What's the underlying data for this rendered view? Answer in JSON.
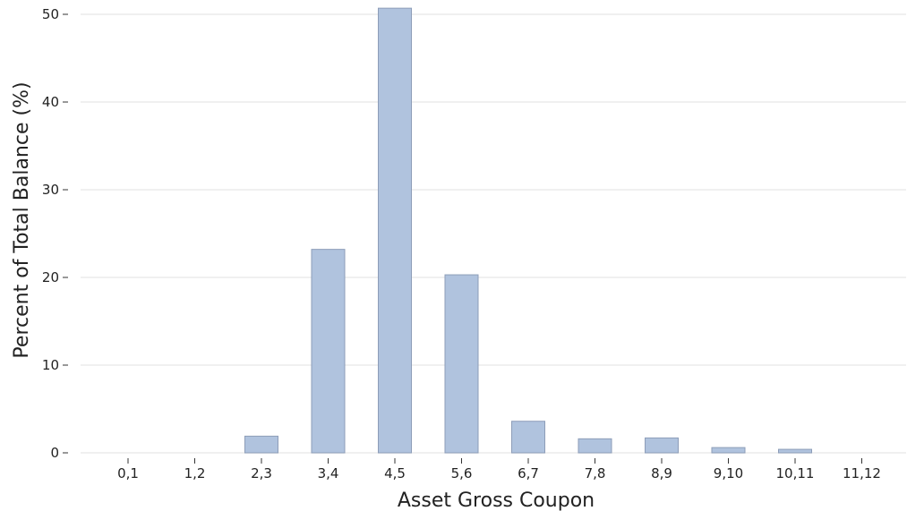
{
  "chart_data": {
    "type": "bar",
    "title": "",
    "xlabel": "Asset Gross Coupon",
    "ylabel": "Percent of Total Balance (%)",
    "categories": [
      "0,1",
      "1,2",
      "2,3",
      "3,4",
      "4,5",
      "5,6",
      "6,7",
      "7,8",
      "8,9",
      "9,10",
      "10,11",
      "11,12"
    ],
    "values": [
      0,
      0,
      1.9,
      23.2,
      50.7,
      20.3,
      3.6,
      1.6,
      1.7,
      0.6,
      0.4,
      0
    ],
    "ylim": [
      0,
      51
    ],
    "yticks": [
      "0",
      "10",
      "20",
      "30",
      "40",
      "50"
    ],
    "grid": true,
    "bar_color": "#b0c3de"
  }
}
